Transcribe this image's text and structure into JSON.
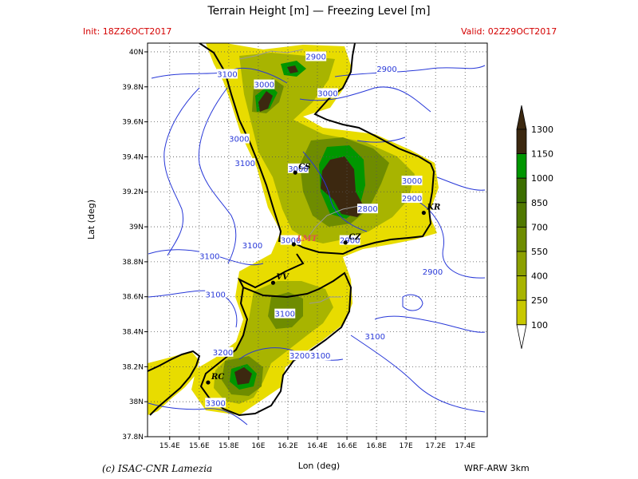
{
  "header": {
    "title": "Terrain Height [m] — Freezing Level [m]",
    "init": "Init: 18Z26OCT2017",
    "valid": "Valid: 02Z29OCT2017"
  },
  "footer": {
    "credit": "(c) ISAC-CNR Lamezia",
    "model": "WRF-ARW 3km"
  },
  "axes": {
    "xlabel": "Lon (deg)",
    "ylabel": "Lat (deg)",
    "xlim": [
      15.25,
      17.55
    ],
    "ylim": [
      37.8,
      40.05
    ],
    "xticks": [
      {
        "v": 15.4,
        "label": "15.4E"
      },
      {
        "v": 15.6,
        "label": "15.6E"
      },
      {
        "v": 15.8,
        "label": "15.8E"
      },
      {
        "v": 16.0,
        "label": "16E"
      },
      {
        "v": 16.2,
        "label": "16.2E"
      },
      {
        "v": 16.4,
        "label": "16.4E"
      },
      {
        "v": 16.6,
        "label": "16.6E"
      },
      {
        "v": 16.8,
        "label": "16.8E"
      },
      {
        "v": 17.0,
        "label": "17E"
      },
      {
        "v": 17.2,
        "label": "17.2E"
      },
      {
        "v": 17.4,
        "label": "17.4E"
      }
    ],
    "yticks": [
      {
        "v": 37.8,
        "label": "37.8N"
      },
      {
        "v": 38.0,
        "label": "38N"
      },
      {
        "v": 38.2,
        "label": "38.2N"
      },
      {
        "v": 38.4,
        "label": "38.4N"
      },
      {
        "v": 38.6,
        "label": "38.6N"
      },
      {
        "v": 38.8,
        "label": "38.8N"
      },
      {
        "v": 39.0,
        "label": "39N"
      },
      {
        "v": 39.2,
        "label": "39.2N"
      },
      {
        "v": 39.4,
        "label": "39.4N"
      },
      {
        "v": 39.6,
        "label": "39.6N"
      },
      {
        "v": 39.8,
        "label": "39.8N"
      },
      {
        "v": 40.0,
        "label": "40N"
      }
    ],
    "grid": true
  },
  "colorbar": {
    "levels": [
      {
        "label": "100",
        "color": "#e8dc00"
      },
      {
        "label": "250",
        "color": "#c8c800"
      },
      {
        "label": "400",
        "color": "#a8b400"
      },
      {
        "label": "550",
        "color": "#8ca000"
      },
      {
        "label": "700",
        "color": "#6e8c00"
      },
      {
        "label": "850",
        "color": "#507800"
      },
      {
        "label": "1000",
        "color": "#3c6e00"
      },
      {
        "label": "1150",
        "color": "#009600"
      },
      {
        "label": "1300",
        "color": "#3c2810"
      }
    ],
    "under_color": "#ffffff",
    "over_color": "#3c2810"
  },
  "cities": [
    {
      "code": "CS",
      "lon": 16.25,
      "lat": 39.31
    },
    {
      "code": "KR",
      "lon": 17.12,
      "lat": 39.08
    },
    {
      "code": "CZ",
      "lon": 16.59,
      "lat": 38.91
    },
    {
      "code": "LMT",
      "lon": 16.24,
      "lat": 38.9
    },
    {
      "code": "VV",
      "lon": 16.1,
      "lat": 38.68
    },
    {
      "code": "RC",
      "lon": 15.66,
      "lat": 38.11
    }
  ],
  "contour_labels": [
    {
      "text": "2900",
      "lon": 16.39,
      "lat": 39.97
    },
    {
      "text": "2900",
      "lon": 16.87,
      "lat": 39.9
    },
    {
      "text": "3100",
      "lon": 15.79,
      "lat": 39.87
    },
    {
      "text": "3000",
      "lon": 16.04,
      "lat": 39.81
    },
    {
      "text": "3000",
      "lon": 16.47,
      "lat": 39.76
    },
    {
      "text": "3000",
      "lon": 15.87,
      "lat": 39.5
    },
    {
      "text": "3100",
      "lon": 15.91,
      "lat": 39.36
    },
    {
      "text": "3000",
      "lon": 16.27,
      "lat": 39.33
    },
    {
      "text": "3000",
      "lon": 17.04,
      "lat": 39.26
    },
    {
      "text": "2900",
      "lon": 17.04,
      "lat": 39.16
    },
    {
      "text": "2800",
      "lon": 16.74,
      "lat": 39.1
    },
    {
      "text": "3100",
      "lon": 15.96,
      "lat": 38.89
    },
    {
      "text": "3000",
      "lon": 16.22,
      "lat": 38.92
    },
    {
      "text": "2900",
      "lon": 16.62,
      "lat": 38.92
    },
    {
      "text": "3100",
      "lon": 15.67,
      "lat": 38.83
    },
    {
      "text": "2900",
      "lon": 17.18,
      "lat": 38.74
    },
    {
      "text": "3100",
      "lon": 15.71,
      "lat": 38.61
    },
    {
      "text": "3100",
      "lon": 16.18,
      "lat": 38.5
    },
    {
      "text": "3100",
      "lon": 16.79,
      "lat": 38.37
    },
    {
      "text": "3200",
      "lon": 15.76,
      "lat": 38.28
    },
    {
      "text": "3200",
      "lon": 16.28,
      "lat": 38.26
    },
    {
      "text": "3100",
      "lon": 16.42,
      "lat": 38.26
    },
    {
      "text": "3300",
      "lon": 15.71,
      "lat": 37.99
    }
  ]
}
